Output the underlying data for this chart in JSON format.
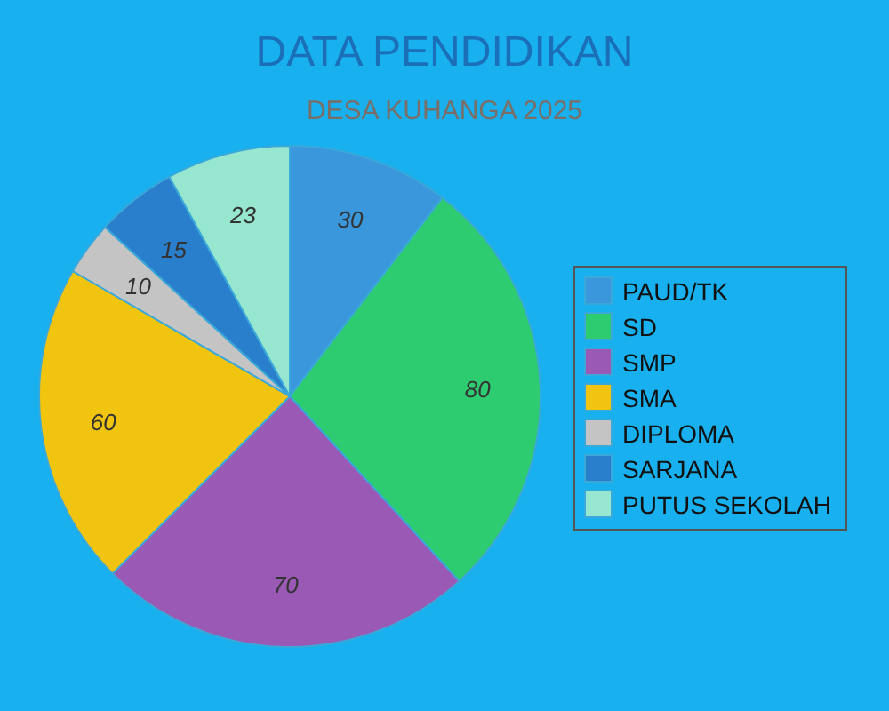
{
  "chart_data": {
    "type": "pie",
    "title": "DATA PENDIDIKAN",
    "subtitle": "DESA KUHANGA 2025",
    "categories": [
      "PAUD/TK",
      "SD",
      "SMP",
      "SMA",
      "DIPLOMA",
      "SARJANA",
      "PUTUS SEKOLAH"
    ],
    "values": [
      30,
      80,
      70,
      60,
      10,
      15,
      23
    ],
    "colors": [
      "#3a97dc",
      "#2ecc71",
      "#9b59b6",
      "#f1c40f",
      "#c4c4c4",
      "#2a7fcc",
      "#96e6d0"
    ],
    "data_labels": true,
    "legend": "right"
  }
}
